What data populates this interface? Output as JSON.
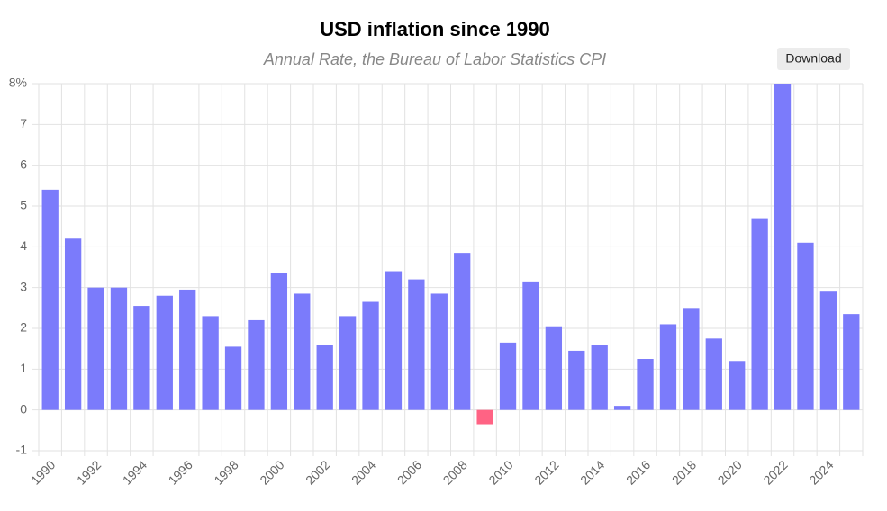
{
  "chart_data": {
    "type": "bar",
    "title": "USD inflation since 1990",
    "subtitle": "Annual Rate, the Bureau of Labor Statistics CPI",
    "button": "Download",
    "categories": [
      "1990",
      null,
      "1992",
      null,
      "1994",
      null,
      "1996",
      null,
      "1998",
      null,
      "2000",
      null,
      "2002",
      null,
      "2004",
      null,
      "2006",
      null,
      "2008",
      null,
      "2010",
      null,
      "2012",
      null,
      "2014",
      null,
      "2016",
      null,
      "2018",
      null,
      "2020",
      null,
      "2022",
      null,
      "2024",
      null
    ],
    "values": [
      5.4,
      4.2,
      3.0,
      3.0,
      2.55,
      2.8,
      2.95,
      2.3,
      1.55,
      2.2,
      3.35,
      2.85,
      1.6,
      2.3,
      2.65,
      3.4,
      3.2,
      2.85,
      3.85,
      -0.35,
      1.65,
      3.15,
      2.05,
      1.45,
      1.6,
      0.1,
      1.25,
      2.1,
      2.5,
      1.75,
      1.2,
      4.7,
      8.0,
      4.1,
      2.9,
      2.35
    ],
    "positive_color": "#7b7bfb",
    "negative_color": "#ff6384",
    "ylim": [
      -1,
      8
    ],
    "yticks": [
      -1,
      0,
      1,
      2,
      3,
      4,
      5,
      6,
      7,
      {
        "value": 8,
        "label": "8%"
      }
    ],
    "grid": true
  }
}
